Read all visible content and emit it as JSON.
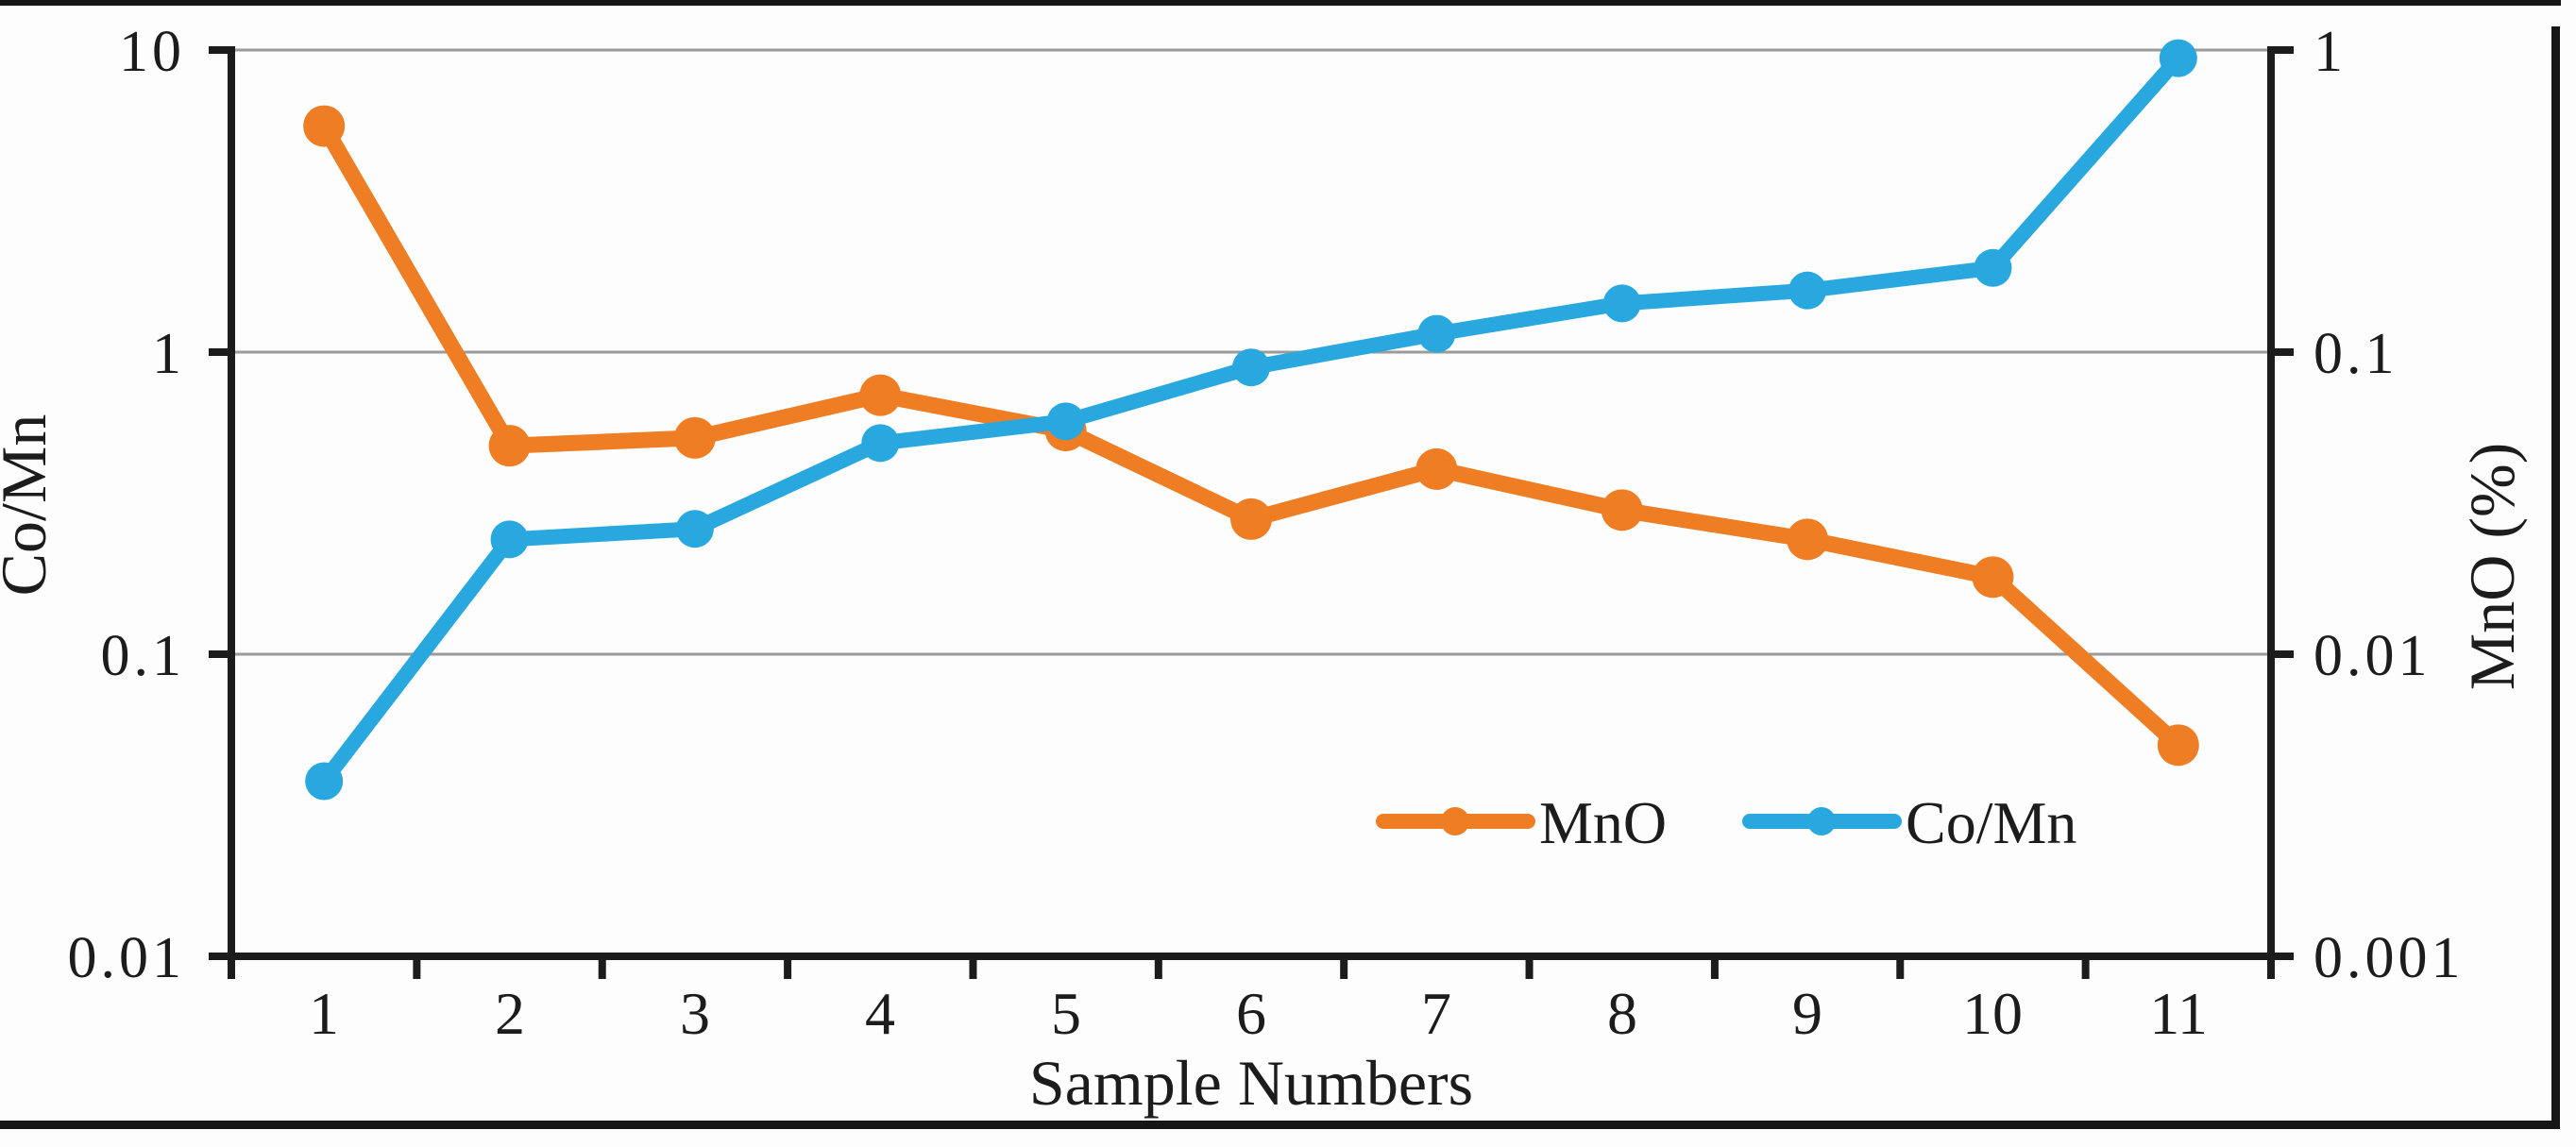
{
  "figure": {
    "background": "#fdfdfd",
    "frame_color": "#161616",
    "grid_color": "#9b9b9b",
    "axis_color": "#1c1c1c"
  },
  "chart_data": {
    "type": "line",
    "title": "",
    "xlabel": "Sample Numbers",
    "x": {
      "categories": [
        "1",
        "2",
        "3",
        "4",
        "5",
        "6",
        "7",
        "8",
        "9",
        "10",
        "11"
      ]
    },
    "y_left": {
      "label": "Co/Mn",
      "scale": "log",
      "range": [
        0.01,
        10
      ],
      "ticks": [
        "10",
        "1",
        "0.1",
        "0.01"
      ]
    },
    "y_right": {
      "label": "MnO (%)",
      "scale": "log",
      "range": [
        0.001,
        1
      ],
      "ticks": [
        "1",
        "0.1",
        "0.01",
        "0.001"
      ]
    },
    "grid": "horizontal decade gridlines",
    "legend": {
      "position": "inside-bottom-right",
      "entries": [
        "MnO",
        "Co/Mn"
      ]
    },
    "series": [
      {
        "name": "MnO",
        "axis": "right",
        "color": "#ee7d23",
        "values": [
          0.56,
          0.049,
          0.052,
          0.072,
          0.055,
          0.028,
          0.041,
          0.03,
          0.024,
          0.018,
          0.005
        ]
      },
      {
        "name": "Co/Mn",
        "axis": "left",
        "color": "#29a8e0",
        "values": [
          0.038,
          0.24,
          0.26,
          0.5,
          0.59,
          0.89,
          1.15,
          1.45,
          1.6,
          1.9,
          9.4
        ]
      }
    ]
  }
}
